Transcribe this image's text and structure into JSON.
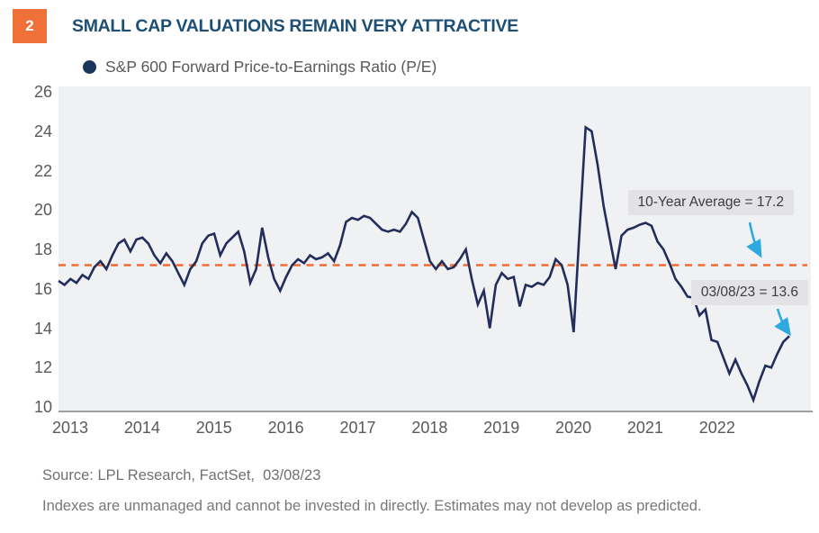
{
  "badge": {
    "number": "2",
    "bg_color": "#F0703A"
  },
  "header": {
    "title": "SMALL CAP VALUATIONS REMAIN VERY ATTRACTIVE",
    "color": "#1D4F74"
  },
  "legend": {
    "label": "S&P 600 Forward Price-to-Earnings Ratio (P/E)",
    "marker": "filled-circle",
    "marker_color": "#1B365D"
  },
  "chart_data": {
    "type": "line",
    "title": "SMALL CAP VALUATIONS REMAIN VERY ATTRACTIVE",
    "series": [
      {
        "name": "S&P 600 Forward Price-to-Earnings Ratio (P/E)",
        "color": "#232D5C",
        "x_start": "2013-01",
        "frequency": "monthly",
        "values": [
          16.4,
          16.2,
          16.5,
          16.3,
          16.7,
          16.5,
          17.1,
          17.4,
          17.0,
          17.7,
          18.3,
          18.5,
          17.9,
          18.5,
          18.6,
          18.3,
          17.7,
          17.3,
          17.8,
          17.4,
          16.8,
          16.2,
          17.0,
          17.4,
          18.3,
          18.7,
          18.8,
          17.7,
          18.3,
          18.6,
          18.9,
          17.9,
          16.3,
          17.0,
          19.1,
          17.6,
          16.5,
          15.9,
          16.6,
          17.2,
          17.5,
          17.3,
          17.7,
          17.5,
          17.6,
          17.8,
          17.4,
          18.2,
          19.4,
          19.6,
          19.5,
          19.7,
          19.6,
          19.3,
          19.0,
          18.9,
          19.0,
          18.9,
          19.3,
          19.9,
          19.6,
          18.5,
          17.4,
          17.0,
          17.4,
          17.0,
          17.1,
          17.5,
          18.0,
          16.5,
          15.2,
          15.9,
          14.0,
          16.2,
          16.8,
          16.5,
          16.6,
          15.1,
          16.2,
          16.1,
          16.3,
          16.2,
          16.6,
          17.5,
          17.2,
          16.2,
          13.8,
          19.0,
          24.2,
          24.0,
          22.3,
          20.2,
          18.6,
          17.0,
          18.7,
          19.0,
          19.1,
          19.25,
          19.35,
          19.2,
          18.4,
          18.0,
          17.3,
          16.5,
          16.1,
          15.6,
          15.55,
          14.65,
          14.95,
          13.4,
          13.3,
          12.5,
          11.7,
          12.4,
          11.7,
          11.1,
          10.35,
          11.3,
          12.1,
          12.0,
          12.7,
          13.3,
          13.6
        ]
      }
    ],
    "x_ticks": [
      "2013",
      "2014",
      "2015",
      "2016",
      "2017",
      "2018",
      "2019",
      "2020",
      "2021",
      "2022"
    ],
    "y_ticks": [
      26,
      24,
      22,
      20,
      18,
      16,
      14,
      12,
      10
    ],
    "ylim": [
      10,
      26.3
    ],
    "grid": false,
    "legend_position": "top-left",
    "plot_bg": "#F0F1F3",
    "average_line": {
      "label": "10-Year Average",
      "value": 17.2,
      "color": "#F26C33",
      "style": "dashed"
    },
    "annotations": [
      {
        "text": "10-Year Average = 17.2",
        "arrow_color": "#2BA9E0",
        "box_bg": "#E3E3E5"
      },
      {
        "text": "03/08/23 = 13.6",
        "arrow_color": "#2BA9E0",
        "box_bg": "#E3E3E5"
      }
    ]
  },
  "footer": {
    "source": "Source: LPL Research, FactSet,  03/08/23",
    "disclaimer": "Indexes are unmanaged and cannot be invested in directly. Estimates may not develop as predicted."
  }
}
